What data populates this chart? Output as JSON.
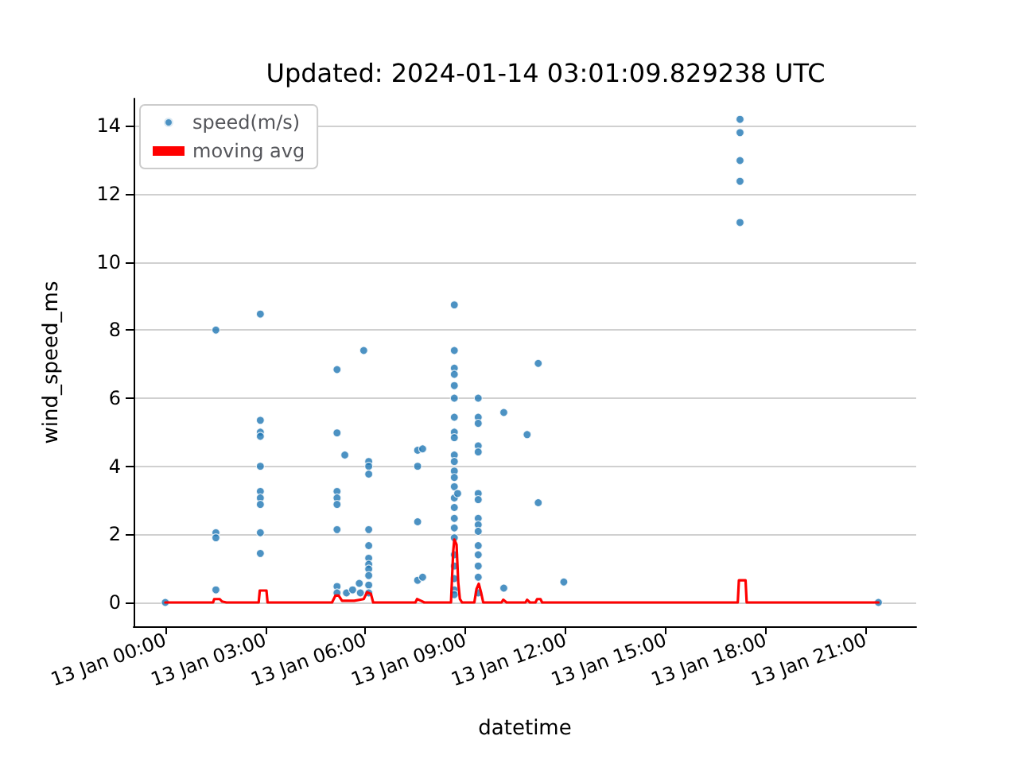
{
  "chart_data": {
    "type": "scatter",
    "title": "Updated: 2024-01-14 03:01:09.829238 UTC",
    "xlabel": "datetime",
    "ylabel": "wind_speed_ms",
    "xlim": [
      "2024-01-12T23:03",
      "2024-01-13T22:31"
    ],
    "xticks": [
      {
        "value": "2024-01-13T00:00",
        "label": "13 Jan 00:00"
      },
      {
        "value": "2024-01-13T03:00",
        "label": "13 Jan 03:00"
      },
      {
        "value": "2024-01-13T06:00",
        "label": "13 Jan 06:00"
      },
      {
        "value": "2024-01-13T09:00",
        "label": "13 Jan 09:00"
      },
      {
        "value": "2024-01-13T12:00",
        "label": "13 Jan 12:00"
      },
      {
        "value": "2024-01-13T15:00",
        "label": "13 Jan 15:00"
      },
      {
        "value": "2024-01-13T18:00",
        "label": "13 Jan 18:00"
      },
      {
        "value": "2024-01-13T21:00",
        "label": "13 Jan 21:00"
      }
    ],
    "ylim": [
      -0.7,
      14.8
    ],
    "yticks": [
      0,
      2,
      4,
      6,
      8,
      10,
      12,
      14
    ],
    "grid": "y",
    "legend": "top left",
    "series": [
      {
        "name": "speed(m/s)",
        "marker": "circle",
        "color": "#1f77b4",
        "x": [
          "2024-01-13T00:00",
          "2024-01-13T01:31",
          "2024-01-13T01:31",
          "2024-01-13T01:31",
          "2024-01-13T01:31",
          "2024-01-13T02:51",
          "2024-01-13T02:51",
          "2024-01-13T02:51",
          "2024-01-13T02:51",
          "2024-01-13T02:51",
          "2024-01-13T02:51",
          "2024-01-13T02:51",
          "2024-01-13T02:51",
          "2024-01-13T02:51",
          "2024-01-13T02:51",
          "2024-01-13T05:09",
          "2024-01-13T05:09",
          "2024-01-13T05:09",
          "2024-01-13T05:09",
          "2024-01-13T05:09",
          "2024-01-13T05:09",
          "2024-01-13T05:09",
          "2024-01-13T05:09",
          "2024-01-13T05:23",
          "2024-01-13T05:26",
          "2024-01-13T05:37",
          "2024-01-13T05:49",
          "2024-01-13T05:51",
          "2024-01-13T05:57",
          "2024-01-13T06:06",
          "2024-01-13T06:06",
          "2024-01-13T06:06",
          "2024-01-13T06:06",
          "2024-01-13T06:06",
          "2024-01-13T06:06",
          "2024-01-13T06:06",
          "2024-01-13T06:06",
          "2024-01-13T06:06",
          "2024-01-13T06:06",
          "2024-01-13T06:06",
          "2024-01-13T07:34",
          "2024-01-13T07:34",
          "2024-01-13T07:34",
          "2024-01-13T07:34",
          "2024-01-13T07:43",
          "2024-01-13T07:43",
          "2024-01-13T08:40",
          "2024-01-13T08:40",
          "2024-01-13T08:40",
          "2024-01-13T08:40",
          "2024-01-13T08:40",
          "2024-01-13T08:40",
          "2024-01-13T08:40",
          "2024-01-13T08:40",
          "2024-01-13T08:40",
          "2024-01-13T08:40",
          "2024-01-13T08:40",
          "2024-01-13T08:40",
          "2024-01-13T08:40",
          "2024-01-13T08:40",
          "2024-01-13T08:40",
          "2024-01-13T08:40",
          "2024-01-13T08:40",
          "2024-01-13T08:40",
          "2024-01-13T08:40",
          "2024-01-13T08:40",
          "2024-01-13T08:40",
          "2024-01-13T08:40",
          "2024-01-13T08:40",
          "2024-01-13T08:40",
          "2024-01-13T08:46",
          "2024-01-13T09:23",
          "2024-01-13T09:23",
          "2024-01-13T09:23",
          "2024-01-13T09:23",
          "2024-01-13T09:23",
          "2024-01-13T09:23",
          "2024-01-13T09:23",
          "2024-01-13T09:23",
          "2024-01-13T09:23",
          "2024-01-13T09:23",
          "2024-01-13T09:23",
          "2024-01-13T09:23",
          "2024-01-13T09:23",
          "2024-01-13T09:23",
          "2024-01-13T09:23",
          "2024-01-13T10:09",
          "2024-01-13T10:09",
          "2024-01-13T10:51",
          "2024-01-13T11:11",
          "2024-01-13T11:11",
          "2024-01-13T11:57",
          "2024-01-13T17:14",
          "2024-01-13T17:14",
          "2024-01-13T17:14",
          "2024-01-13T17:14",
          "2024-01-13T17:14",
          "2024-01-13T21:23"
        ],
        "values": [
          0,
          8.0,
          2.05,
          1.9,
          0.37,
          8.47,
          5.35,
          5.0,
          4.88,
          4.0,
          3.26,
          3.07,
          2.88,
          2.05,
          1.44,
          6.84,
          4.98,
          3.26,
          3.07,
          2.88,
          2.14,
          0.47,
          0.28,
          4.33,
          0.28,
          0.37,
          0.56,
          0.28,
          7.4,
          4.14,
          4.0,
          3.77,
          2.14,
          1.67,
          1.3,
          1.12,
          0.98,
          0.79,
          0.51,
          0.28,
          4.47,
          4.0,
          2.37,
          0.65,
          4.51,
          0.74,
          8.74,
          7.4,
          6.88,
          6.7,
          6.37,
          6.0,
          5.44,
          5.0,
          4.84,
          4.33,
          4.14,
          3.86,
          3.67,
          3.4,
          3.07,
          2.79,
          2.47,
          2.19,
          1.9,
          1.4,
          1.07,
          0.7,
          0.37,
          0.23,
          3.2,
          6.0,
          5.44,
          5.26,
          4.6,
          4.42,
          3.2,
          3.02,
          2.47,
          2.28,
          2.09,
          1.67,
          1.4,
          1.07,
          0.74,
          0.28,
          5.58,
          0.42,
          4.93,
          7.02,
          2.93,
          0.6,
          14.19,
          13.8,
          12.98,
          12.37,
          11.16,
          0
        ]
      },
      {
        "name": "moving avg",
        "type": "line",
        "marker": "none",
        "line_style": "solid",
        "color": "#ff0000",
        "x": [
          "2024-01-13T00:00",
          "2024-01-13T01:26",
          "2024-01-13T01:28",
          "2024-01-13T01:38",
          "2024-01-13T01:42",
          "2024-01-13T01:50",
          "2024-01-13T02:48",
          "2024-01-13T02:50",
          "2024-01-13T03:02",
          "2024-01-13T03:04",
          "2024-01-13T05:00",
          "2024-01-13T05:06",
          "2024-01-13T05:12",
          "2024-01-13T05:18",
          "2024-01-13T05:40",
          "2024-01-13T05:57",
          "2024-01-13T06:03",
          "2024-01-13T06:10",
          "2024-01-13T06:14",
          "2024-01-13T07:30",
          "2024-01-13T07:33",
          "2024-01-13T07:40",
          "2024-01-13T07:46",
          "2024-01-13T08:34",
          "2024-01-13T08:38",
          "2024-01-13T08:40",
          "2024-01-13T08:44",
          "2024-01-13T08:47",
          "2024-01-13T08:50",
          "2024-01-13T08:54",
          "2024-01-13T09:16",
          "2024-01-13T09:20",
          "2024-01-13T09:24",
          "2024-01-13T09:28",
          "2024-01-13T09:32",
          "2024-01-13T10:05",
          "2024-01-13T10:08",
          "2024-01-13T10:14",
          "2024-01-13T10:48",
          "2024-01-13T10:51",
          "2024-01-13T10:56",
          "2024-01-13T11:06",
          "2024-01-13T11:09",
          "2024-01-13T11:15",
          "2024-01-13T11:18",
          "2024-01-13T17:10",
          "2024-01-13T17:12",
          "2024-01-13T17:24",
          "2024-01-13T17:26",
          "2024-01-13T21:23"
        ],
        "values": [
          0,
          0,
          0.1,
          0.1,
          0.03,
          0,
          0,
          0.35,
          0.35,
          0,
          0,
          0.2,
          0.2,
          0.05,
          0.05,
          0.1,
          0.3,
          0.25,
          0,
          0,
          0.1,
          0.05,
          0,
          0,
          1.5,
          1.85,
          1.7,
          0.6,
          0.1,
          0,
          0,
          0.4,
          0.55,
          0.3,
          0,
          0,
          0.08,
          0,
          0,
          0.08,
          0,
          0,
          0.1,
          0.1,
          0,
          0,
          0.65,
          0.65,
          0,
          0
        ]
      }
    ]
  }
}
